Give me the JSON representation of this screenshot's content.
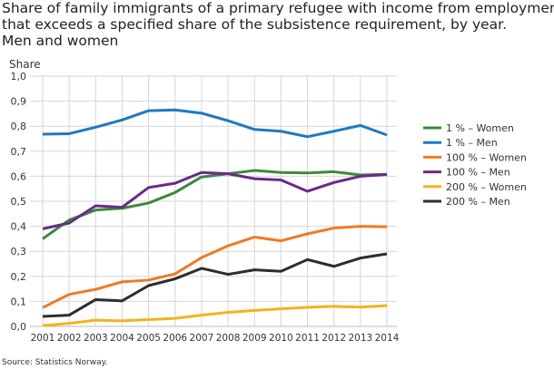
{
  "title_lines": [
    "Share of family immigrants of a primary refugee with income from employment",
    "that exceeds a specified share of the subsistence requirement, by year.",
    "Men and women"
  ],
  "source": "Source: Statistics Norway.",
  "chart_data": {
    "type": "line",
    "title": "Share of family immigrants of a primary refugee with income from employment that exceeds a specified share of the subsistence requirement, by year. Men and women",
    "ylabel": "Share",
    "ylim": [
      0,
      1
    ],
    "yticks": [
      "0,0",
      "0,1",
      "0,2",
      "0,3",
      "0,4",
      "0,5",
      "0,6",
      "0,7",
      "0,8",
      "0,9",
      "1,0"
    ],
    "grid": true,
    "legend": "right",
    "x": [
      "2001",
      "2002",
      "2003",
      "2004",
      "2005",
      "2006",
      "2007",
      "2008",
      "2009",
      "2010",
      "2011",
      "2012",
      "2013",
      "2014"
    ],
    "series": [
      {
        "name": "1 % – Women",
        "color": "#3a8a3a",
        "values": [
          0.35,
          0.425,
          0.465,
          0.472,
          0.493,
          0.535,
          0.597,
          0.61,
          0.623,
          0.615,
          0.613,
          0.618,
          0.605,
          0.608
        ]
      },
      {
        "name": "1 % – Men",
        "color": "#1f78c1",
        "values": [
          0.768,
          0.77,
          0.796,
          0.825,
          0.862,
          0.865,
          0.852,
          0.822,
          0.787,
          0.78,
          0.758,
          0.78,
          0.803,
          0.765
        ]
      },
      {
        "name": "100 % – Women",
        "color": "#f07a22",
        "values": [
          0.075,
          0.128,
          0.148,
          0.178,
          0.185,
          0.21,
          0.275,
          0.322,
          0.357,
          0.342,
          0.37,
          0.393,
          0.4,
          0.398
        ]
      },
      {
        "name": "100 % – Men",
        "color": "#6b2a8a",
        "values": [
          0.39,
          0.413,
          0.482,
          0.476,
          0.555,
          0.572,
          0.615,
          0.61,
          0.59,
          0.585,
          0.54,
          0.575,
          0.6,
          0.607
        ]
      },
      {
        "name": "200 % – Women",
        "color": "#f0b41e",
        "values": [
          0.003,
          0.012,
          0.025,
          0.022,
          0.027,
          0.032,
          0.045,
          0.056,
          0.064,
          0.07,
          0.076,
          0.08,
          0.077,
          0.083
        ]
      },
      {
        "name": "200 % – Men",
        "color": "#2d2d2d",
        "values": [
          0.04,
          0.045,
          0.107,
          0.102,
          0.163,
          0.19,
          0.232,
          0.208,
          0.226,
          0.22,
          0.267,
          0.24,
          0.273,
          0.29
        ]
      }
    ]
  }
}
